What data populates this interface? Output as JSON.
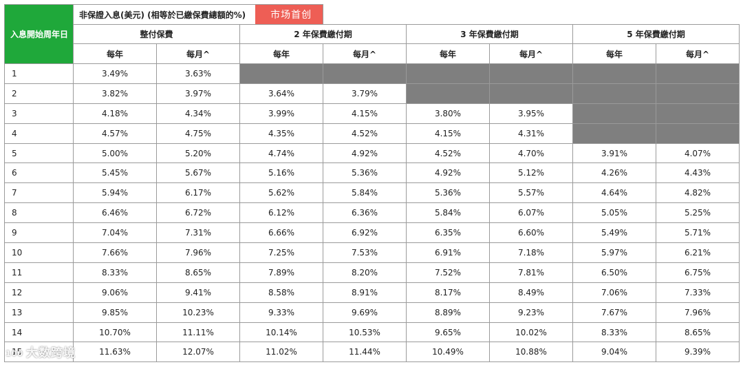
{
  "header": {
    "corner_label": "入息開始周年日",
    "title": "非保證入息(美元) (相等於已繳保費總額的%)",
    "badge": "市场首创",
    "groups": [
      "整付保費",
      "2 年保費繳付期",
      "3 年保費繳付期",
      "5 年保費繳付期"
    ],
    "sub": [
      "每年",
      "每月^",
      "每年",
      "每月^",
      "每年",
      "每月^",
      "每年",
      "每月^"
    ]
  },
  "rows": [
    {
      "label": "1",
      "cells": [
        "3.49%",
        "3.63%",
        null,
        null,
        null,
        null,
        null,
        null
      ]
    },
    {
      "label": "2",
      "cells": [
        "3.82%",
        "3.97%",
        "3.64%",
        "3.79%",
        null,
        null,
        null,
        null
      ]
    },
    {
      "label": "3",
      "cells": [
        "4.18%",
        "4.34%",
        "3.99%",
        "4.15%",
        "3.80%",
        "3.95%",
        null,
        null
      ]
    },
    {
      "label": "4",
      "cells": [
        "4.57%",
        "4.75%",
        "4.35%",
        "4.52%",
        "4.15%",
        "4.31%",
        null,
        null
      ]
    },
    {
      "label": "5",
      "cells": [
        "5.00%",
        "5.20%",
        "4.74%",
        "4.92%",
        "4.52%",
        "4.70%",
        "3.91%",
        "4.07%"
      ]
    },
    {
      "label": "6",
      "cells": [
        "5.45%",
        "5.67%",
        "5.16%",
        "5.36%",
        "4.92%",
        "5.12%",
        "4.26%",
        "4.43%"
      ]
    },
    {
      "label": "7",
      "cells": [
        "5.94%",
        "6.17%",
        "5.62%",
        "5.84%",
        "5.36%",
        "5.57%",
        "4.64%",
        "4.82%"
      ]
    },
    {
      "label": "8",
      "cells": [
        "6.46%",
        "6.72%",
        "6.12%",
        "6.36%",
        "5.84%",
        "6.07%",
        "5.05%",
        "5.25%"
      ]
    },
    {
      "label": "9",
      "cells": [
        "7.04%",
        "7.31%",
        "6.66%",
        "6.92%",
        "6.35%",
        "6.60%",
        "5.49%",
        "5.71%"
      ]
    },
    {
      "label": "10",
      "cells": [
        "7.66%",
        "7.96%",
        "7.25%",
        "7.53%",
        "6.91%",
        "7.18%",
        "5.97%",
        "6.21%"
      ]
    },
    {
      "label": "11",
      "cells": [
        "8.33%",
        "8.65%",
        "7.89%",
        "8.20%",
        "7.52%",
        "7.81%",
        "6.50%",
        "6.75%"
      ]
    },
    {
      "label": "12",
      "cells": [
        "9.06%",
        "9.41%",
        "8.58%",
        "8.91%",
        "8.17%",
        "8.49%",
        "7.06%",
        "7.33%"
      ]
    },
    {
      "label": "13",
      "cells": [
        "9.85%",
        "10.23%",
        "9.33%",
        "9.69%",
        "8.89%",
        "9.23%",
        "7.67%",
        "7.96%"
      ]
    },
    {
      "label": "14",
      "cells": [
        "10.70%",
        "11.11%",
        "10.14%",
        "10.53%",
        "9.65%",
        "10.02%",
        "8.33%",
        "8.65%"
      ]
    },
    {
      "label": "15",
      "cells": [
        "11.63%",
        "12.07%",
        "11.02%",
        "11.44%",
        "10.49%",
        "10.88%",
        "9.04%",
        "9.39%"
      ]
    }
  ],
  "watermark": {
    "icon": "100",
    "text": "大数跨境"
  }
}
